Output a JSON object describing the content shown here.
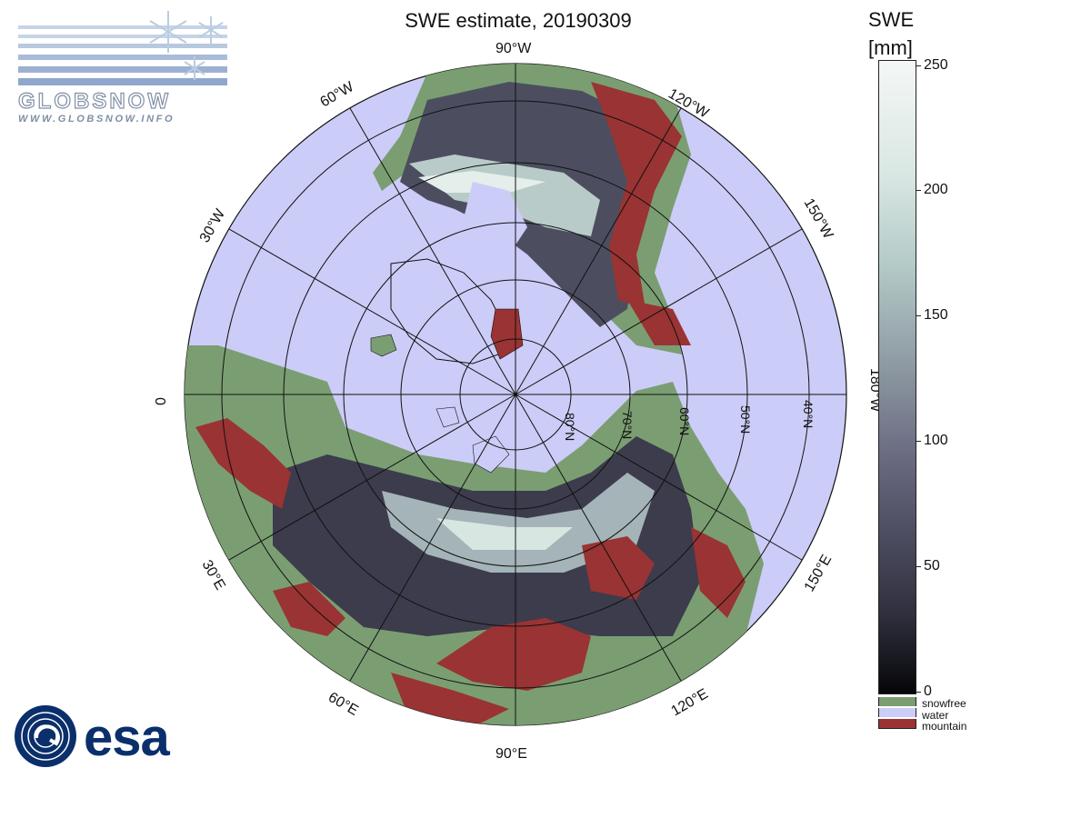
{
  "title": "SWE estimate, 20190309",
  "colorbar": {
    "title_line1": "SWE",
    "title_line2": "[mm]",
    "min": 0,
    "max": 250,
    "ticks": [
      "250",
      "200",
      "150",
      "100",
      "50",
      "0"
    ],
    "categories": [
      {
        "label": "snowfree",
        "color": "#7a9e72"
      },
      {
        "label": "water",
        "color": "#ccccf8"
      },
      {
        "label": "mountain",
        "color": "#9a3333"
      }
    ]
  },
  "map": {
    "projection": "north polar stereographic",
    "ocean_color": "#ccccf8",
    "longitude_labels": {
      "lon_0": "0",
      "lon_30E": "30°E",
      "lon_60E": "60°E",
      "lon_90E": "90°E",
      "lon_120E": "120°E",
      "lon_150E": "150°E",
      "lon_180W": "180°W",
      "lon_150W": "150°W",
      "lon_120W": "120°W",
      "lon_90W": "90°W",
      "lon_60W": "60°W",
      "lon_30W": "30°W"
    },
    "latitude_labels": [
      "40°N",
      "50°N",
      "60°N",
      "70°N",
      "80°N"
    ]
  },
  "logos": {
    "globsnow_word": "GLOBSNOW",
    "globsnow_url": "WWW.GLOBSNOW.INFO",
    "esa_word": "esa"
  }
}
